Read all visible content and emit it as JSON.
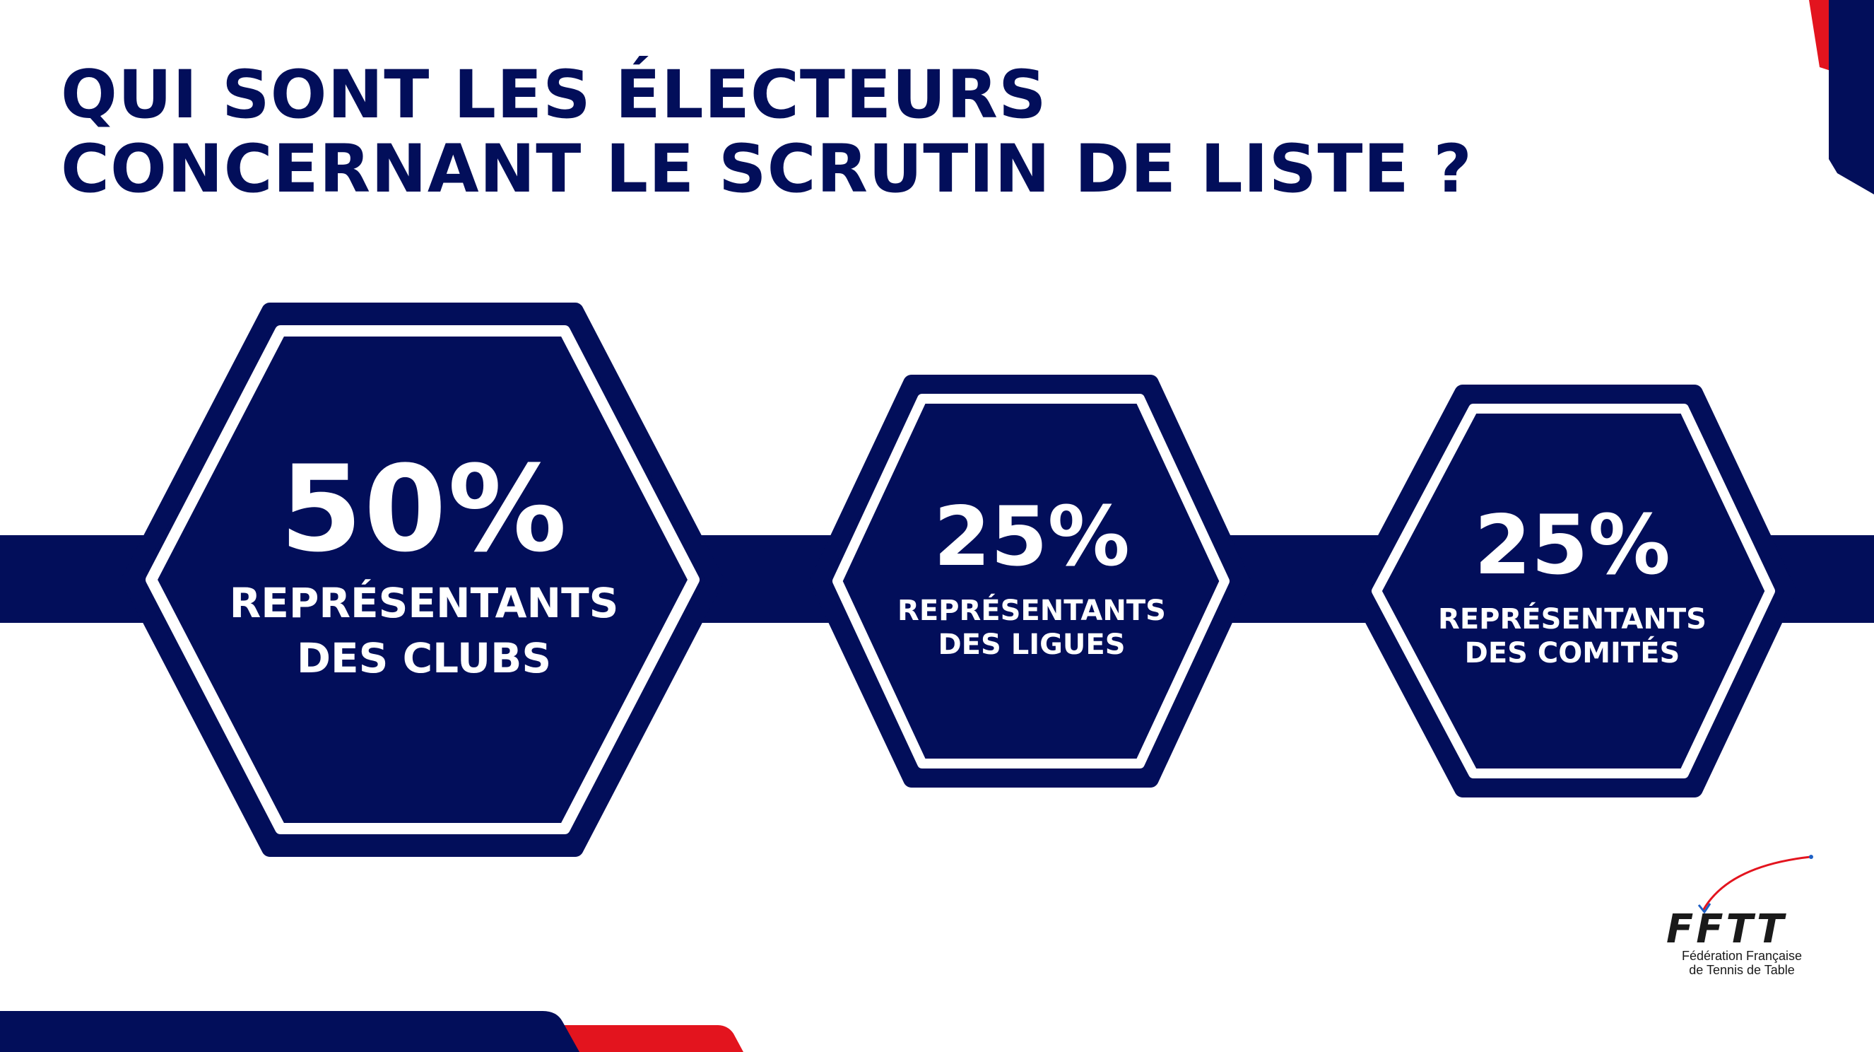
{
  "title": {
    "line1": "QUI SONT LES ÉLECTEURS",
    "line2": "CONCERNANT LE SCRUTIN DE LISTE ?"
  },
  "hexagons": [
    {
      "percent": "50%",
      "label_line1": "REPRÉSENTANTS",
      "label_line2": "DES CLUBS",
      "share": 0.5
    },
    {
      "percent": "25%",
      "label_line1": "REPRÉSENTANTS",
      "label_line2": "DES LIGUES",
      "share": 0.25
    },
    {
      "percent": "25%",
      "label_line1": "REPRÉSENTANTS",
      "label_line2": "DES COMITÉS",
      "share": 0.25
    }
  ],
  "logo": {
    "wordmark": "FFTT",
    "caption_line1": "Fédération Française",
    "caption_line2": "de Tennis de Table"
  },
  "colors": {
    "navy": "#020e5a",
    "red": "#e3141e",
    "white": "#ffffff"
  }
}
